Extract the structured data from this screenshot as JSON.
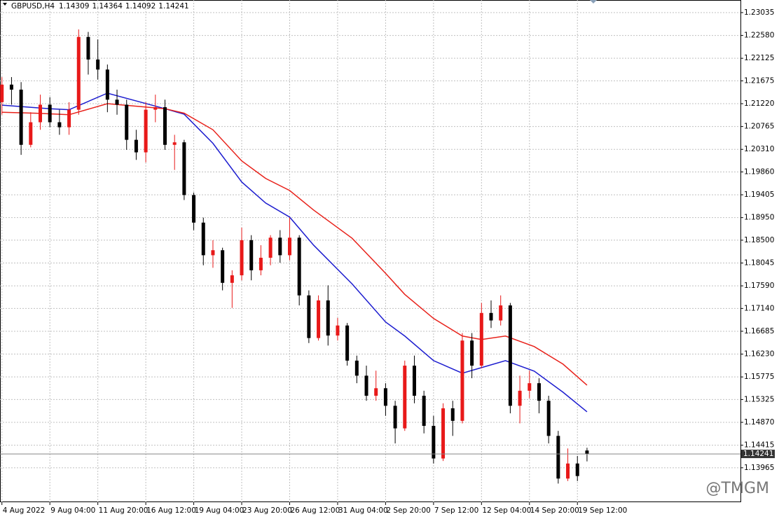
{
  "chart_data": {
    "type": "candlestick",
    "symbol": "GBPUSD,H4",
    "watermark": "@TMGM",
    "up_color": "#e81919",
    "down_color": "#000000",
    "open": [
      1.2125,
      1.216,
      1.215,
      1.204,
      1.2085,
      1.212,
      1.2085,
      1.2075,
      1.211,
      1.2255,
      1.221,
      1.219,
      1.213,
      1.212,
      1.205,
      1.2025,
      1.211,
      1.2115,
      1.204,
      1.2045,
      1.194,
      1.1885,
      1.182,
      1.183,
      1.1765,
      1.178,
      1.185,
      1.179,
      1.1815,
      1.1855,
      1.182,
      1.1855,
      1.174,
      1.1655,
      1.173,
      1.166,
      1.168,
      1.161,
      1.158,
      1.154,
      1.1555,
      1.152,
      1.1475,
      1.16,
      1.154,
      1.148,
      1.1415,
      1.1515,
      1.149,
      1.165,
      1.16,
      1.1705,
      1.169,
      1.172,
      1.152,
      1.155,
      1.1565,
      1.153,
      1.146,
      1.1375,
      1.1405,
      1.14309
    ],
    "high": [
      1.2175,
      1.2175,
      1.2165,
      1.2105,
      1.214,
      1.2135,
      1.211,
      1.2125,
      1.227,
      1.2265,
      1.225,
      1.22,
      1.215,
      1.213,
      1.207,
      1.2125,
      1.214,
      1.213,
      1.206,
      1.205,
      1.1945,
      1.1895,
      1.185,
      1.1835,
      1.179,
      1.1875,
      1.186,
      1.184,
      1.186,
      1.187,
      1.1895,
      1.186,
      1.175,
      1.174,
      1.176,
      1.1695,
      1.1685,
      1.162,
      1.16,
      1.159,
      1.1565,
      1.153,
      1.161,
      1.162,
      1.155,
      1.15,
      1.1525,
      1.153,
      1.1665,
      1.1665,
      1.1725,
      1.173,
      1.174,
      1.1725,
      1.158,
      1.159,
      1.1575,
      1.154,
      1.147,
      1.1435,
      1.142,
      1.14364
    ],
    "low": [
      1.21,
      1.212,
      1.202,
      1.2035,
      1.207,
      1.2075,
      1.206,
      1.206,
      1.21,
      1.218,
      1.217,
      1.2105,
      1.21,
      1.203,
      1.201,
      1.2005,
      1.2085,
      1.203,
      1.199,
      1.193,
      1.187,
      1.18,
      1.1795,
      1.175,
      1.1715,
      1.177,
      1.177,
      1.178,
      1.18,
      1.1805,
      1.181,
      1.172,
      1.1645,
      1.165,
      1.164,
      1.165,
      1.16,
      1.1565,
      1.153,
      1.153,
      1.15,
      1.1445,
      1.147,
      1.1525,
      1.1465,
      1.1405,
      1.141,
      1.146,
      1.1485,
      1.1575,
      1.1595,
      1.1675,
      1.168,
      1.1505,
      1.1485,
      1.1535,
      1.1505,
      1.1445,
      1.1365,
      1.137,
      1.137,
      1.14092
    ],
    "close": [
      1.216,
      1.215,
      1.204,
      1.2085,
      1.212,
      1.2085,
      1.2075,
      1.211,
      1.2255,
      1.221,
      1.219,
      1.213,
      1.212,
      1.205,
      1.2025,
      1.211,
      1.2115,
      1.204,
      1.2045,
      1.194,
      1.1885,
      1.182,
      1.183,
      1.1765,
      1.178,
      1.185,
      1.179,
      1.1815,
      1.1855,
      1.182,
      1.1855,
      1.174,
      1.1655,
      1.173,
      1.166,
      1.168,
      1.161,
      1.158,
      1.154,
      1.1555,
      1.152,
      1.1475,
      1.16,
      1.154,
      1.148,
      1.1415,
      1.1515,
      1.149,
      1.165,
      1.16,
      1.1705,
      1.169,
      1.172,
      1.152,
      1.155,
      1.1565,
      1.153,
      1.146,
      1.1375,
      1.1405,
      1.138,
      1.14241
    ],
    "lines": [
      {
        "color": "#1c1ccf",
        "x": [
          0,
          5,
          7,
          11,
          17,
          19,
          22,
          25,
          27.5,
          30,
          32.5,
          36.5,
          40,
          42,
          45,
          48,
          50,
          52.5,
          55.5,
          58.5,
          61
        ],
        "values": [
          1.2119,
          1.2112,
          1.211,
          1.2143,
          1.2112,
          1.2101,
          1.2043,
          1.1966,
          1.1924,
          1.1896,
          1.184,
          1.1763,
          1.1687,
          1.1659,
          1.161,
          1.1585,
          1.1596,
          1.161,
          1.1589,
          1.1547,
          1.1508
        ]
      },
      {
        "color": "#e8211a",
        "x": [
          0,
          3.5,
          7,
          11,
          17,
          19,
          22,
          25,
          27.5,
          30,
          32.5,
          36.5,
          40,
          42,
          45,
          48,
          50,
          52.5,
          55.5,
          58.5,
          61
        ],
        "values": [
          1.2105,
          1.2103,
          1.21,
          1.2122,
          1.2112,
          1.2103,
          1.207,
          1.2008,
          1.1973,
          1.1949,
          1.191,
          1.1854,
          1.1784,
          1.1742,
          1.1694,
          1.1659,
          1.1652,
          1.1659,
          1.1638,
          1.1603,
          1.1561
        ]
      }
    ],
    "xlim": [
      -0.2,
      77
    ],
    "xticks": [
      {
        "value": 0,
        "label": "4 Aug 2022"
      },
      {
        "value": 5,
        "label": "9 Aug 04:00"
      },
      {
        "value": 10,
        "label": "11 Aug 20:00"
      },
      {
        "value": 15,
        "label": "16 Aug 12:00"
      },
      {
        "value": 20,
        "label": "19 Aug 04:00"
      },
      {
        "value": 25,
        "label": "23 Aug 20:00"
      },
      {
        "value": 30,
        "label": "26 Aug 12:00"
      },
      {
        "value": 35,
        "label": "31 Aug 04:00"
      },
      {
        "value": 40,
        "label": "2 Sep 20:00"
      },
      {
        "value": 45,
        "label": "7 Sep 12:00"
      },
      {
        "value": 50,
        "label": "12 Sep 04:00"
      },
      {
        "value": 55,
        "label": "14 Sep 20:00"
      },
      {
        "value": 60,
        "label": "19 Sep 12:00"
      }
    ],
    "ylim": [
      1.13279,
      1.23286
    ],
    "yticks": [
      1.23035,
      {
        "value": 1.2258,
        "label": "1.22580"
      },
      1.22125,
      1.21675,
      {
        "value": 1.2122,
        "label": "1.21220"
      },
      1.20765,
      {
        "value": 1.2031,
        "label": "1.20310"
      },
      {
        "value": 1.1986,
        "label": "1.19860"
      },
      1.19405,
      {
        "value": 1.1895,
        "label": "1.18950"
      },
      {
        "value": 1.185,
        "label": "1.18500"
      },
      1.18045,
      {
        "value": 1.1759,
        "label": "1.17590"
      },
      {
        "value": 1.1714,
        "label": "1.17140"
      },
      1.16685,
      {
        "value": 1.1623,
        "label": "1.16230"
      },
      1.15775,
      1.15325,
      {
        "value": 1.1487,
        "label": "1.14870"
      },
      1.14415,
      1.13965
    ],
    "grid": true
  }
}
